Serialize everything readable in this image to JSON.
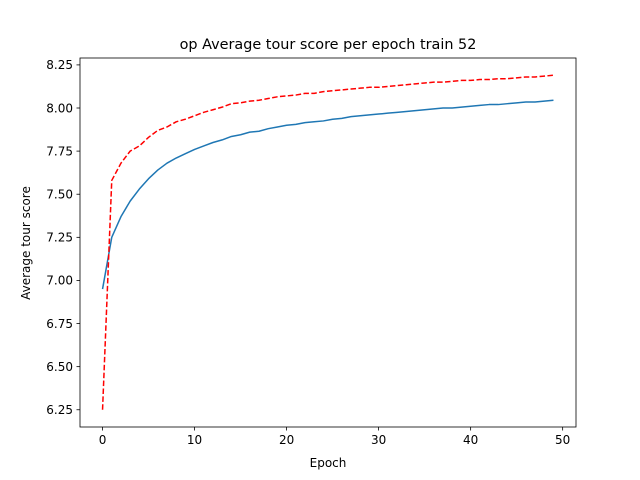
{
  "chart_data": {
    "type": "line",
    "title": "op Average tour score per epoch train 52",
    "xlabel": "Epoch",
    "ylabel": "Average tour score",
    "xlim": [
      -2.45,
      51.45
    ],
    "ylim": [
      6.15,
      8.29
    ],
    "xticks": [
      0,
      10,
      20,
      30,
      40,
      50
    ],
    "yticks": [
      6.25,
      6.5,
      6.75,
      7.0,
      7.25,
      7.5,
      7.75,
      8.0,
      8.25
    ],
    "grid": false,
    "legend": "none",
    "x": [
      0,
      1,
      2,
      3,
      4,
      5,
      6,
      7,
      8,
      9,
      10,
      11,
      12,
      13,
      14,
      15,
      16,
      17,
      18,
      19,
      20,
      21,
      22,
      23,
      24,
      25,
      26,
      27,
      28,
      29,
      30,
      31,
      32,
      33,
      34,
      35,
      36,
      37,
      38,
      39,
      40,
      41,
      42,
      43,
      44,
      45,
      46,
      47,
      48,
      49
    ],
    "series": [
      {
        "color": "#1f77b4",
        "style": "solid",
        "values": [
          6.95,
          7.25,
          7.37,
          7.46,
          7.53,
          7.59,
          7.64,
          7.68,
          7.71,
          7.735,
          7.76,
          7.78,
          7.8,
          7.815,
          7.835,
          7.845,
          7.86,
          7.865,
          7.88,
          7.89,
          7.9,
          7.905,
          7.915,
          7.92,
          7.925,
          7.935,
          7.94,
          7.95,
          7.955,
          7.96,
          7.965,
          7.97,
          7.975,
          7.98,
          7.985,
          7.99,
          7.995,
          8.0,
          8.0,
          8.005,
          8.01,
          8.015,
          8.02,
          8.02,
          8.025,
          8.03,
          8.035,
          8.035,
          8.04,
          8.045
        ]
      },
      {
        "color": "#ff0000",
        "style": "dashed",
        "values": [
          6.25,
          7.58,
          7.68,
          7.75,
          7.78,
          7.83,
          7.87,
          7.89,
          7.92,
          7.935,
          7.955,
          7.975,
          7.99,
          8.005,
          8.025,
          8.03,
          8.04,
          8.045,
          8.055,
          8.065,
          8.07,
          8.075,
          8.085,
          8.085,
          8.095,
          8.1,
          8.105,
          8.11,
          8.115,
          8.12,
          8.12,
          8.125,
          8.13,
          8.135,
          8.14,
          8.145,
          8.15,
          8.15,
          8.155,
          8.16,
          8.16,
          8.165,
          8.165,
          8.17,
          8.17,
          8.175,
          8.18,
          8.18,
          8.185,
          8.19
        ]
      }
    ]
  }
}
